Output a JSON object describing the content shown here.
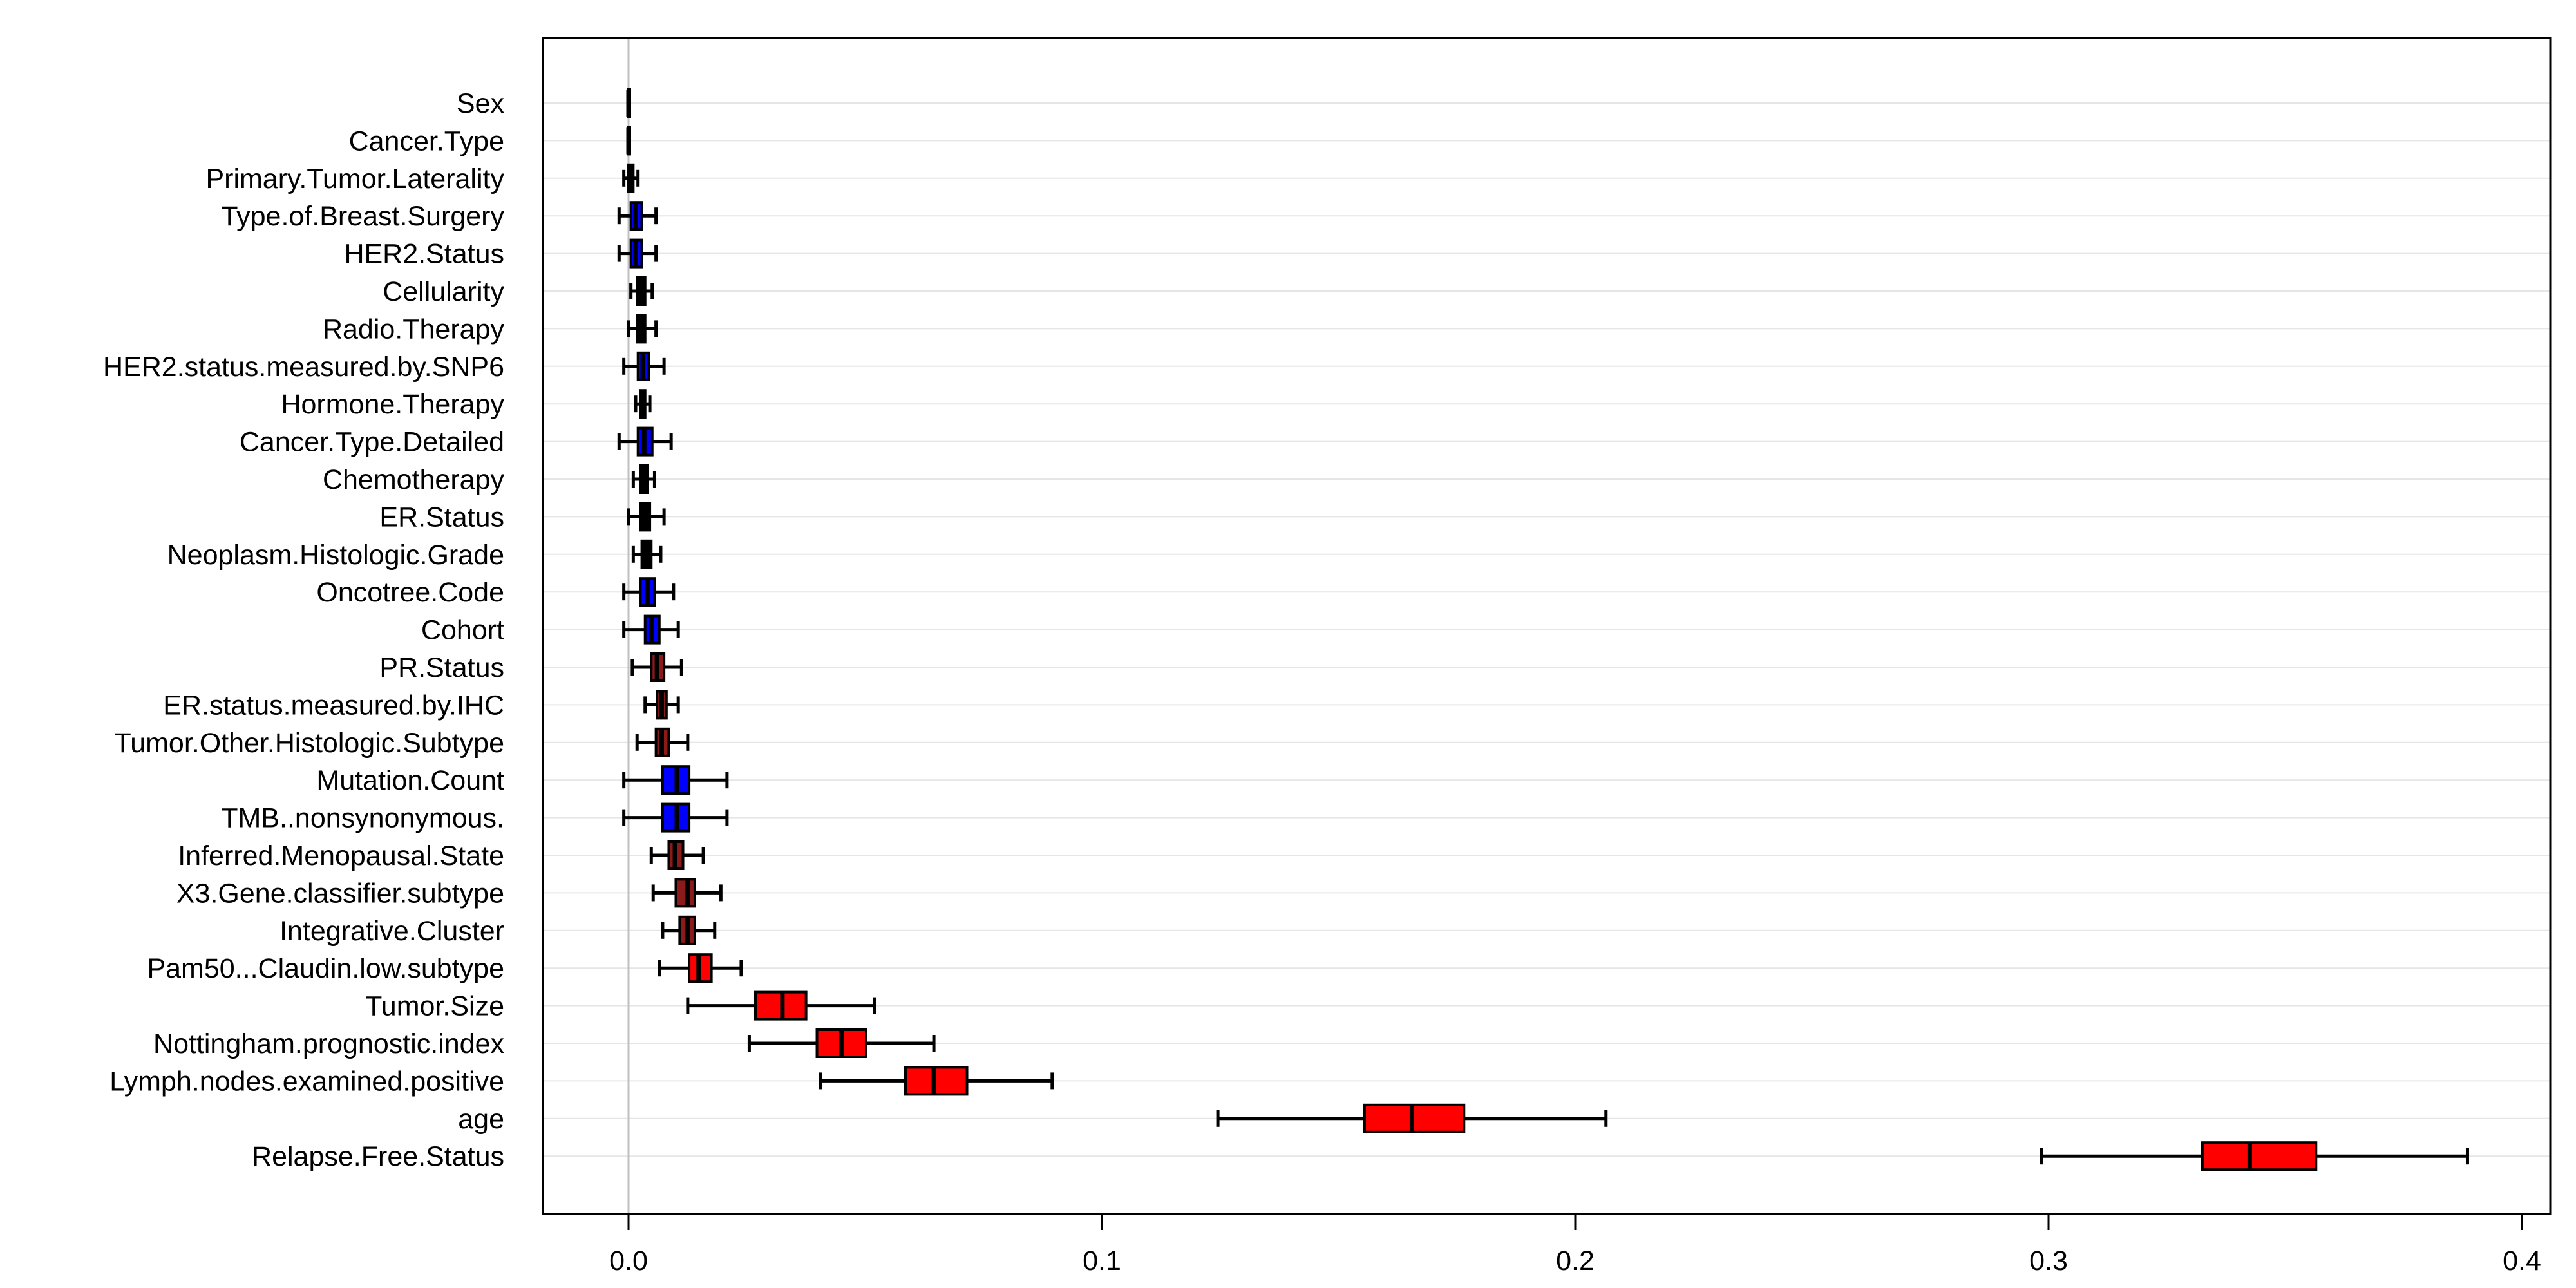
{
  "chart_data": {
    "type": "boxplot",
    "orientation": "horizontal",
    "title": "",
    "xlabel": "",
    "ylabel": "",
    "xlim": [
      -0.018,
      0.405
    ],
    "x_ticks": [
      0.0,
      0.1,
      0.2,
      0.3,
      0.4
    ],
    "x_tick_labels": [
      "0.0",
      "0.1",
      "0.2",
      "0.3",
      "0.4"
    ],
    "reference_line_x": 0,
    "grid": "horizontal",
    "colors": {
      "confirmed": "#ff0000",
      "tentative": "#0000ff",
      "mixed": "#8b1a1a",
      "rejected": "#000000",
      "whisker": "#000000",
      "grid": "#e6e6e6",
      "zero_line": "#c0c0c0"
    },
    "series": [
      {
        "label": "Sex",
        "min": 0.0,
        "q1": 0.0,
        "median": 0.0,
        "q3": 0.0,
        "max": 0.0,
        "status": "rejected"
      },
      {
        "label": "Cancer.Type",
        "min": 0.0,
        "q1": 0.0,
        "median": 0.0,
        "q3": 0.0,
        "max": 0.0,
        "status": "rejected"
      },
      {
        "label": "Primary.Tumor.Laterality",
        "min": -0.001,
        "q1": 0.0,
        "median": 0.0005,
        "q3": 0.001,
        "max": 0.002,
        "status": "rejected"
      },
      {
        "label": "Type.of.Breast.Surgery",
        "min": -0.002,
        "q1": 0.0005,
        "median": 0.0015,
        "q3": 0.0028,
        "max": 0.0058,
        "status": "tentative"
      },
      {
        "label": "HER2.Status",
        "min": -0.002,
        "q1": 0.0005,
        "median": 0.0015,
        "q3": 0.0028,
        "max": 0.0058,
        "status": "tentative"
      },
      {
        "label": "Cellularity",
        "min": 0.0005,
        "q1": 0.0018,
        "median": 0.0025,
        "q3": 0.0035,
        "max": 0.005,
        "status": "rejected"
      },
      {
        "label": "Radio.Therapy",
        "min": 0.0,
        "q1": 0.0018,
        "median": 0.0027,
        "q3": 0.0035,
        "max": 0.0058,
        "status": "rejected"
      },
      {
        "label": "HER2.status.measured.by.SNP6",
        "min": -0.001,
        "q1": 0.002,
        "median": 0.003,
        "q3": 0.0043,
        "max": 0.0075,
        "status": "tentative"
      },
      {
        "label": "Hormone.Therapy",
        "min": 0.0015,
        "q1": 0.0025,
        "median": 0.003,
        "q3": 0.0035,
        "max": 0.0045,
        "status": "rejected"
      },
      {
        "label": "Cancer.Type.Detailed",
        "min": -0.002,
        "q1": 0.002,
        "median": 0.0033,
        "q3": 0.005,
        "max": 0.009,
        "status": "tentative"
      },
      {
        "label": "Chemotherapy",
        "min": 0.001,
        "q1": 0.0025,
        "median": 0.0032,
        "q3": 0.004,
        "max": 0.0055,
        "status": "rejected"
      },
      {
        "label": "ER.Status",
        "min": 0.0,
        "q1": 0.0025,
        "median": 0.0035,
        "q3": 0.0045,
        "max": 0.0075,
        "status": "rejected"
      },
      {
        "label": "Neoplasm.Histologic.Grade",
        "min": 0.001,
        "q1": 0.0028,
        "median": 0.0037,
        "q3": 0.0048,
        "max": 0.0068,
        "status": "rejected"
      },
      {
        "label": "Oncotree.Code",
        "min": -0.001,
        "q1": 0.0025,
        "median": 0.004,
        "q3": 0.0055,
        "max": 0.0095,
        "status": "tentative"
      },
      {
        "label": "Cohort",
        "min": -0.001,
        "q1": 0.0035,
        "median": 0.0048,
        "q3": 0.0065,
        "max": 0.0105,
        "status": "tentative"
      },
      {
        "label": "PR.Status",
        "min": 0.0008,
        "q1": 0.0048,
        "median": 0.006,
        "q3": 0.0075,
        "max": 0.0112,
        "status": "mixed"
      },
      {
        "label": "ER.status.measured.by.IHC",
        "min": 0.0035,
        "q1": 0.006,
        "median": 0.007,
        "q3": 0.008,
        "max": 0.0105,
        "status": "mixed"
      },
      {
        "label": "Tumor.Other.Histologic.Subtype",
        "min": 0.0018,
        "q1": 0.0058,
        "median": 0.007,
        "q3": 0.0085,
        "max": 0.0125,
        "status": "mixed"
      },
      {
        "label": "Mutation.Count",
        "min": -0.001,
        "q1": 0.0072,
        "median": 0.0102,
        "q3": 0.0128,
        "max": 0.0208,
        "status": "tentative"
      },
      {
        "label": "TMB..nonsynonymous.",
        "min": -0.001,
        "q1": 0.0072,
        "median": 0.0102,
        "q3": 0.0128,
        "max": 0.0208,
        "status": "tentative"
      },
      {
        "label": "Inferred.Menopausal.State",
        "min": 0.0048,
        "q1": 0.0085,
        "median": 0.0098,
        "q3": 0.0115,
        "max": 0.0158,
        "status": "mixed"
      },
      {
        "label": "X3.Gene.classifier.subtype",
        "min": 0.0052,
        "q1": 0.01,
        "median": 0.0125,
        "q3": 0.014,
        "max": 0.0195,
        "status": "mixed"
      },
      {
        "label": "Integrative.Cluster",
        "min": 0.0072,
        "q1": 0.0108,
        "median": 0.0125,
        "q3": 0.014,
        "max": 0.0182,
        "status": "mixed"
      },
      {
        "label": "Pam50...Claudin.low.subtype",
        "min": 0.0065,
        "q1": 0.0128,
        "median": 0.0148,
        "q3": 0.0175,
        "max": 0.0238,
        "status": "confirmed"
      },
      {
        "label": "Tumor.Size",
        "min": 0.0125,
        "q1": 0.0268,
        "median": 0.0325,
        "q3": 0.0375,
        "max": 0.052,
        "status": "confirmed"
      },
      {
        "label": "Nottingham.prognostic.index",
        "min": 0.0255,
        "q1": 0.0398,
        "median": 0.045,
        "q3": 0.0502,
        "max": 0.0645,
        "status": "confirmed"
      },
      {
        "label": "Lymph.nodes.examined.positive",
        "min": 0.0405,
        "q1": 0.0585,
        "median": 0.0645,
        "q3": 0.0715,
        "max": 0.0895,
        "status": "confirmed"
      },
      {
        "label": "age",
        "min": 0.1245,
        "q1": 0.1555,
        "median": 0.1655,
        "q3": 0.1765,
        "max": 0.2065,
        "status": "confirmed"
      },
      {
        "label": "Relapse.Free.Status",
        "min": 0.2985,
        "q1": 0.3325,
        "median": 0.3425,
        "q3": 0.3565,
        "max": 0.3885,
        "status": "confirmed"
      }
    ]
  }
}
